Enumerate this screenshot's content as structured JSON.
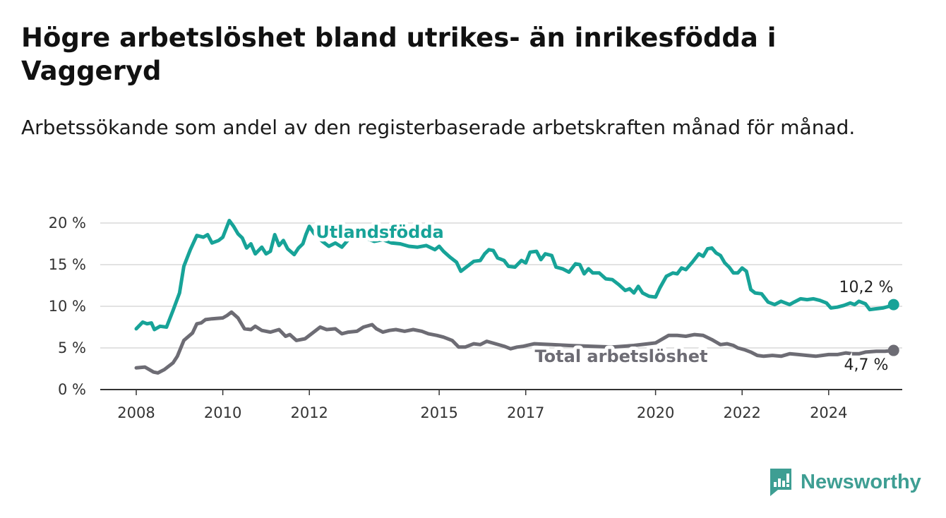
{
  "title": "Högre arbetslöshet bland utrikes- än inrikesfödda i Vaggeryd",
  "subtitle": "Arbetssökande som andel av den registerbaserade arbetskraften månad för månad.",
  "brand": "Newsworthy",
  "colors": {
    "utlandsfodda": "#17a398",
    "total": "#6d6c74",
    "grid": "#d9d9d9",
    "axis": "#333333"
  },
  "chart_data": {
    "type": "line",
    "y_unit": "%",
    "ylim": [
      0,
      20
    ],
    "xlim": [
      2008,
      2025.8
    ],
    "y_ticks": [
      {
        "value": 0,
        "label": "0 %"
      },
      {
        "value": 5,
        "label": "5 %"
      },
      {
        "value": 10,
        "label": "10 %"
      },
      {
        "value": 15,
        "label": "15 %"
      },
      {
        "value": 20,
        "label": "20 %"
      }
    ],
    "x_ticks": [
      {
        "value": 2008,
        "label": "2008"
      },
      {
        "value": 2010,
        "label": "2010"
      },
      {
        "value": 2012,
        "label": "2012"
      },
      {
        "value": 2015,
        "label": "2015"
      },
      {
        "value": 2017,
        "label": "2017"
      },
      {
        "value": 2020,
        "label": "2020"
      },
      {
        "value": 2022,
        "label": "2022"
      },
      {
        "value": 2024,
        "label": "2024"
      }
    ],
    "grid": true,
    "series": [
      {
        "name": "Utlandsfödda",
        "end_label": "10,2 %",
        "points": [
          [
            2008.0,
            7.3
          ],
          [
            2008.15,
            8.1
          ],
          [
            2008.25,
            7.9
          ],
          [
            2008.35,
            8.0
          ],
          [
            2008.42,
            7.2
          ],
          [
            2008.55,
            7.6
          ],
          [
            2008.7,
            7.5
          ],
          [
            2008.85,
            9.5
          ],
          [
            2009.0,
            11.6
          ],
          [
            2009.1,
            14.8
          ],
          [
            2009.25,
            16.8
          ],
          [
            2009.4,
            18.5
          ],
          [
            2009.55,
            18.3
          ],
          [
            2009.65,
            18.6
          ],
          [
            2009.75,
            17.6
          ],
          [
            2009.9,
            17.9
          ],
          [
            2010.0,
            18.3
          ],
          [
            2010.15,
            20.3
          ],
          [
            2010.25,
            19.6
          ],
          [
            2010.35,
            18.7
          ],
          [
            2010.45,
            18.2
          ],
          [
            2010.55,
            17.0
          ],
          [
            2010.65,
            17.5
          ],
          [
            2010.75,
            16.3
          ],
          [
            2010.9,
            17.1
          ],
          [
            2011.0,
            16.3
          ],
          [
            2011.1,
            16.6
          ],
          [
            2011.2,
            18.6
          ],
          [
            2011.3,
            17.3
          ],
          [
            2011.4,
            17.9
          ],
          [
            2011.5,
            16.9
          ],
          [
            2011.65,
            16.2
          ],
          [
            2011.75,
            17.0
          ],
          [
            2011.85,
            17.5
          ],
          [
            2011.92,
            18.6
          ],
          [
            2012.0,
            19.6
          ],
          [
            2012.1,
            18.8
          ],
          [
            2012.3,
            17.8
          ],
          [
            2012.45,
            17.2
          ],
          [
            2012.6,
            17.6
          ],
          [
            2012.75,
            17.1
          ],
          [
            2012.9,
            18.0
          ],
          [
            2013.1,
            18.6
          ],
          [
            2013.3,
            18.2
          ],
          [
            2013.5,
            17.8
          ],
          [
            2013.7,
            18.0
          ],
          [
            2013.9,
            17.6
          ],
          [
            2014.1,
            17.5
          ],
          [
            2014.3,
            17.2
          ],
          [
            2014.5,
            17.1
          ],
          [
            2014.7,
            17.3
          ],
          [
            2014.9,
            16.8
          ],
          [
            2015.0,
            17.2
          ],
          [
            2015.1,
            16.6
          ],
          [
            2015.25,
            15.9
          ],
          [
            2015.4,
            15.3
          ],
          [
            2015.5,
            14.2
          ],
          [
            2015.65,
            14.8
          ],
          [
            2015.8,
            15.4
          ],
          [
            2015.95,
            15.5
          ],
          [
            2016.05,
            16.3
          ],
          [
            2016.15,
            16.8
          ],
          [
            2016.25,
            16.7
          ],
          [
            2016.35,
            15.8
          ],
          [
            2016.5,
            15.5
          ],
          [
            2016.6,
            14.8
          ],
          [
            2016.75,
            14.7
          ],
          [
            2016.9,
            15.5
          ],
          [
            2017.0,
            15.2
          ],
          [
            2017.1,
            16.5
          ],
          [
            2017.25,
            16.6
          ],
          [
            2017.35,
            15.6
          ],
          [
            2017.45,
            16.3
          ],
          [
            2017.6,
            16.1
          ],
          [
            2017.7,
            14.7
          ],
          [
            2017.85,
            14.5
          ],
          [
            2018.0,
            14.1
          ],
          [
            2018.15,
            15.1
          ],
          [
            2018.25,
            15.0
          ],
          [
            2018.35,
            13.9
          ],
          [
            2018.45,
            14.5
          ],
          [
            2018.55,
            14.0
          ],
          [
            2018.7,
            14.0
          ],
          [
            2018.85,
            13.3
          ],
          [
            2019.0,
            13.2
          ],
          [
            2019.15,
            12.6
          ],
          [
            2019.3,
            11.9
          ],
          [
            2019.4,
            12.1
          ],
          [
            2019.5,
            11.6
          ],
          [
            2019.6,
            12.4
          ],
          [
            2019.7,
            11.6
          ],
          [
            2019.85,
            11.2
          ],
          [
            2020.0,
            11.1
          ],
          [
            2020.1,
            12.2
          ],
          [
            2020.25,
            13.6
          ],
          [
            2020.4,
            14.0
          ],
          [
            2020.5,
            13.9
          ],
          [
            2020.6,
            14.6
          ],
          [
            2020.7,
            14.4
          ],
          [
            2020.85,
            15.3
          ],
          [
            2021.0,
            16.3
          ],
          [
            2021.1,
            16.0
          ],
          [
            2021.2,
            16.9
          ],
          [
            2021.3,
            17.0
          ],
          [
            2021.4,
            16.4
          ],
          [
            2021.5,
            16.1
          ],
          [
            2021.6,
            15.2
          ],
          [
            2021.7,
            14.7
          ],
          [
            2021.8,
            14.0
          ],
          [
            2021.9,
            14.0
          ],
          [
            2022.0,
            14.6
          ],
          [
            2022.1,
            14.2
          ],
          [
            2022.2,
            12.0
          ],
          [
            2022.3,
            11.6
          ],
          [
            2022.45,
            11.5
          ],
          [
            2022.6,
            10.5
          ],
          [
            2022.75,
            10.2
          ],
          [
            2022.9,
            10.6
          ],
          [
            2023.0,
            10.4
          ],
          [
            2023.1,
            10.2
          ],
          [
            2023.2,
            10.5
          ],
          [
            2023.35,
            10.9
          ],
          [
            2023.5,
            10.8
          ],
          [
            2023.65,
            10.9
          ],
          [
            2023.8,
            10.7
          ],
          [
            2023.95,
            10.4
          ],
          [
            2024.05,
            9.8
          ],
          [
            2024.2,
            9.9
          ],
          [
            2024.35,
            10.1
          ],
          [
            2024.5,
            10.4
          ],
          [
            2024.6,
            10.2
          ],
          [
            2024.7,
            10.6
          ],
          [
            2024.85,
            10.3
          ],
          [
            2024.95,
            9.6
          ],
          [
            2025.1,
            9.7
          ],
          [
            2025.25,
            9.8
          ],
          [
            2025.4,
            10.0
          ],
          [
            2025.5,
            10.2
          ]
        ]
      },
      {
        "name": "Total arbetslöshet",
        "end_label": "4,7 %",
        "points": [
          [
            2008.0,
            2.6
          ],
          [
            2008.2,
            2.7
          ],
          [
            2008.4,
            2.1
          ],
          [
            2008.5,
            2.0
          ],
          [
            2008.65,
            2.4
          ],
          [
            2008.85,
            3.2
          ],
          [
            2008.95,
            4.0
          ],
          [
            2009.1,
            5.9
          ],
          [
            2009.3,
            6.8
          ],
          [
            2009.4,
            7.9
          ],
          [
            2009.5,
            8.0
          ],
          [
            2009.6,
            8.4
          ],
          [
            2009.75,
            8.5
          ],
          [
            2010.0,
            8.6
          ],
          [
            2010.1,
            8.9
          ],
          [
            2010.2,
            9.3
          ],
          [
            2010.35,
            8.6
          ],
          [
            2010.5,
            7.3
          ],
          [
            2010.65,
            7.2
          ],
          [
            2010.75,
            7.6
          ],
          [
            2010.9,
            7.1
          ],
          [
            2011.1,
            6.9
          ],
          [
            2011.3,
            7.2
          ],
          [
            2011.45,
            6.4
          ],
          [
            2011.55,
            6.6
          ],
          [
            2011.7,
            5.9
          ],
          [
            2011.9,
            6.1
          ],
          [
            2012.1,
            6.9
          ],
          [
            2012.25,
            7.5
          ],
          [
            2012.4,
            7.2
          ],
          [
            2012.6,
            7.3
          ],
          [
            2012.75,
            6.7
          ],
          [
            2012.9,
            6.9
          ],
          [
            2013.1,
            7.0
          ],
          [
            2013.25,
            7.5
          ],
          [
            2013.45,
            7.8
          ],
          [
            2013.55,
            7.3
          ],
          [
            2013.7,
            6.9
          ],
          [
            2013.85,
            7.1
          ],
          [
            2014.0,
            7.2
          ],
          [
            2014.2,
            7.0
          ],
          [
            2014.4,
            7.2
          ],
          [
            2014.6,
            7.0
          ],
          [
            2014.75,
            6.7
          ],
          [
            2014.95,
            6.5
          ],
          [
            2015.1,
            6.3
          ],
          [
            2015.3,
            5.9
          ],
          [
            2015.45,
            5.1
          ],
          [
            2015.6,
            5.1
          ],
          [
            2015.8,
            5.5
          ],
          [
            2015.95,
            5.4
          ],
          [
            2016.1,
            5.8
          ],
          [
            2016.3,
            5.5
          ],
          [
            2016.5,
            5.2
          ],
          [
            2016.65,
            4.9
          ],
          [
            2016.8,
            5.1
          ],
          [
            2016.95,
            5.2
          ],
          [
            2017.2,
            5.5
          ],
          [
            2017.6,
            5.4
          ],
          [
            2018.0,
            5.3
          ],
          [
            2018.5,
            5.2
          ],
          [
            2019.0,
            5.1
          ],
          [
            2019.5,
            5.3
          ],
          [
            2020.0,
            5.6
          ],
          [
            2020.3,
            6.5
          ],
          [
            2020.5,
            6.5
          ],
          [
            2020.7,
            6.4
          ],
          [
            2020.9,
            6.6
          ],
          [
            2021.1,
            6.5
          ],
          [
            2021.3,
            6.0
          ],
          [
            2021.5,
            5.4
          ],
          [
            2021.65,
            5.5
          ],
          [
            2021.8,
            5.3
          ],
          [
            2021.9,
            5.0
          ],
          [
            2022.05,
            4.8
          ],
          [
            2022.2,
            4.5
          ],
          [
            2022.35,
            4.1
          ],
          [
            2022.5,
            4.0
          ],
          [
            2022.7,
            4.1
          ],
          [
            2022.9,
            4.0
          ],
          [
            2023.1,
            4.3
          ],
          [
            2023.3,
            4.2
          ],
          [
            2023.5,
            4.1
          ],
          [
            2023.7,
            4.0
          ],
          [
            2023.85,
            4.1
          ],
          [
            2024.0,
            4.2
          ],
          [
            2024.2,
            4.2
          ],
          [
            2024.4,
            4.4
          ],
          [
            2024.55,
            4.3
          ],
          [
            2024.7,
            4.3
          ],
          [
            2024.85,
            4.5
          ],
          [
            2025.1,
            4.6
          ],
          [
            2025.3,
            4.6
          ],
          [
            2025.5,
            4.7
          ]
        ]
      }
    ],
    "series_labels": [
      "Utlandsfödda",
      "Total arbetslöshet"
    ]
  }
}
